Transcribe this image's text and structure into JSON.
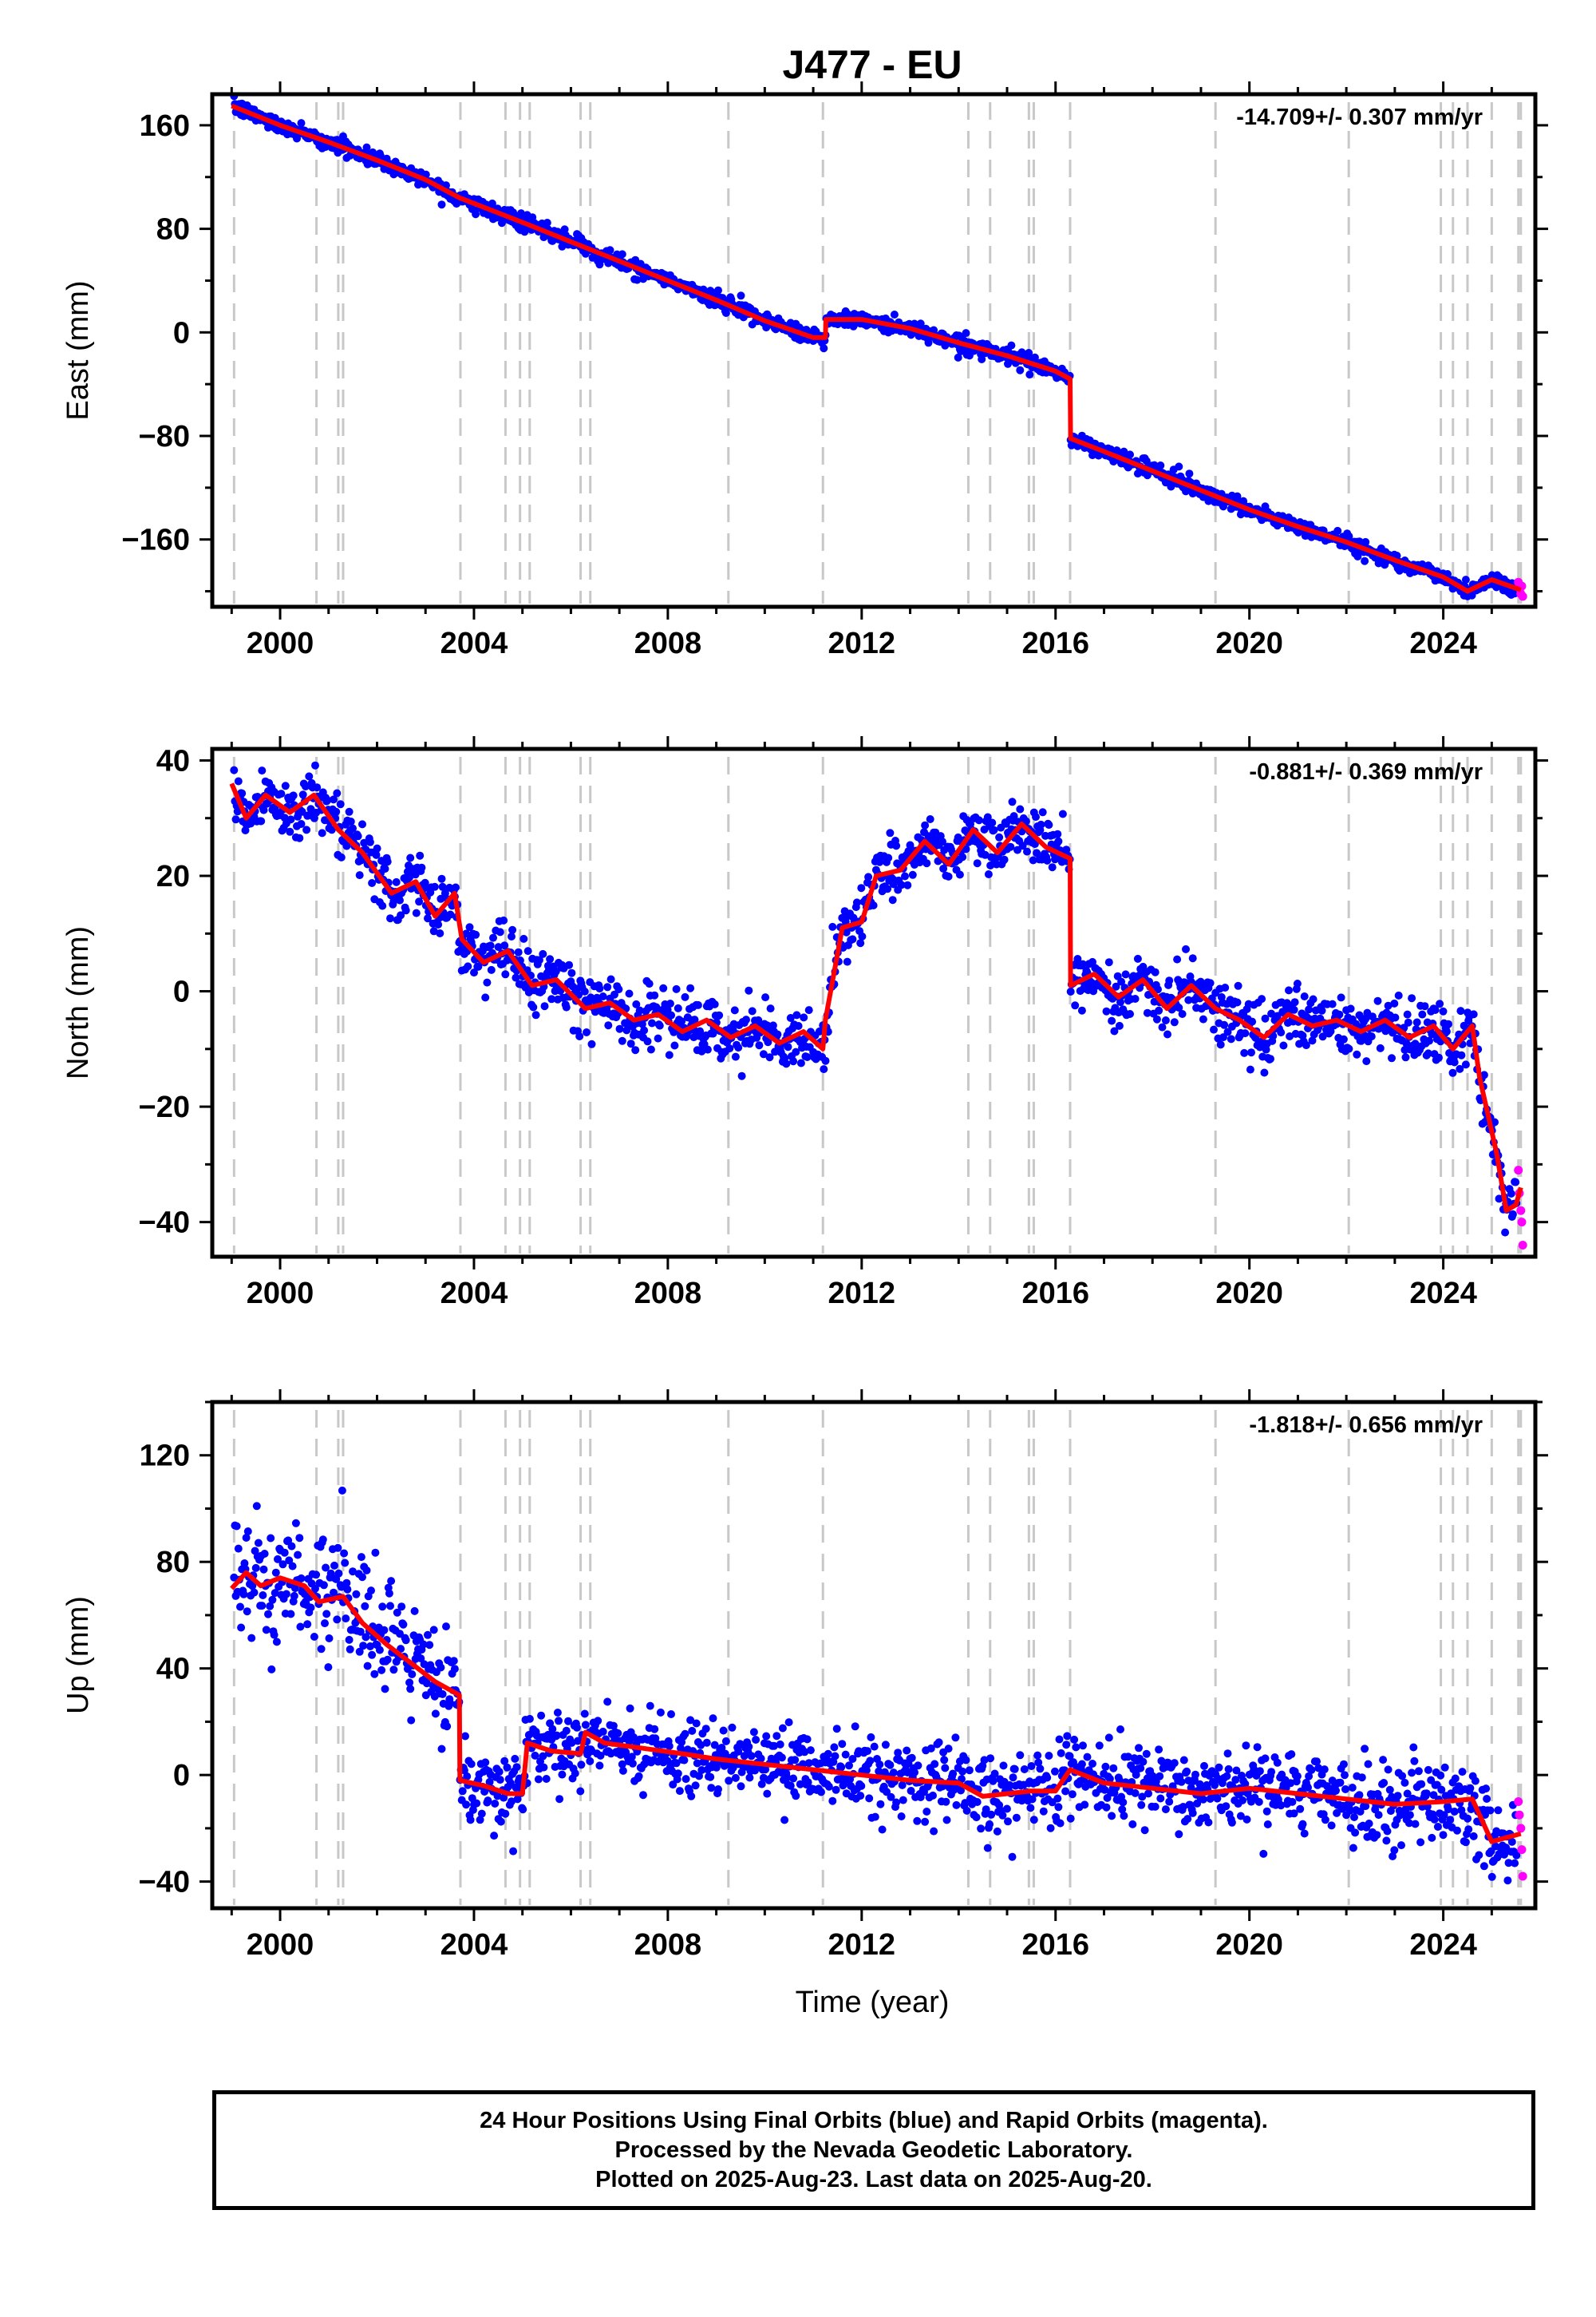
{
  "title": "J477 - EU",
  "xlabel": "Time (year)",
  "footer": {
    "line1": "24 Hour Positions Using Final Orbits (blue) and Rapid Orbits (magenta).",
    "line2": "Processed by the Nevada Geodetic Laboratory.",
    "line3": "Plotted on 2025-Aug-23. Last data on 2025-Aug-20."
  },
  "colors": {
    "final": "#0000ff",
    "rapid": "#ff00ff",
    "model": "#ff0000",
    "steps": "#c8c8c8"
  },
  "chart_data": [
    {
      "type": "scatter",
      "panel": "east",
      "ylabel": "East (mm)",
      "rate": "-14.709+/- 0.307 mm/yr",
      "xlim": [
        1998.6,
        2025.9
      ],
      "ylim": [
        -212,
        184
      ],
      "xticks": [
        2000,
        2004,
        2008,
        2012,
        2016,
        2020,
        2024
      ],
      "yticks": [
        160,
        80,
        0,
        -80,
        -160
      ],
      "ytick_labels": [
        "160",
        "80",
        "0",
        "−80",
        "−160"
      ],
      "model": [
        [
          1999.0,
          175
        ],
        [
          2000.0,
          160
        ],
        [
          2001.0,
          147
        ],
        [
          2002.0,
          133
        ],
        [
          2003.0,
          118
        ],
        [
          2003.7,
          104
        ],
        [
          2005.0,
          85
        ],
        [
          2006.0,
          70
        ],
        [
          2007.0,
          55
        ],
        [
          2008.0,
          40
        ],
        [
          2009.0,
          25
        ],
        [
          2010.0,
          9
        ],
        [
          2011.0,
          -4
        ],
        [
          2011.25,
          -4
        ],
        [
          2011.26,
          10
        ],
        [
          2012.0,
          10
        ],
        [
          2013.0,
          3
        ],
        [
          2014.0,
          -8
        ],
        [
          2015.0,
          -18
        ],
        [
          2016.0,
          -30
        ],
        [
          2016.3,
          -36
        ],
        [
          2016.31,
          -82
        ],
        [
          2017.0,
          -92
        ],
        [
          2018.0,
          -107
        ],
        [
          2019.0,
          -122
        ],
        [
          2020.0,
          -137
        ],
        [
          2021.0,
          -150
        ],
        [
          2022.0,
          -162
        ],
        [
          2023.0,
          -176
        ],
        [
          2024.0,
          -189
        ],
        [
          2024.5,
          -200
        ],
        [
          2025.0,
          -191
        ],
        [
          2025.6,
          -199
        ]
      ],
      "noise": 3,
      "rapid_points": [
        [
          2025.55,
          -193
        ],
        [
          2025.58,
          -198
        ],
        [
          2025.6,
          -202
        ],
        [
          2025.62,
          -196
        ],
        [
          2025.64,
          -204
        ]
      ]
    },
    {
      "type": "scatter",
      "panel": "north",
      "ylabel": "North (mm)",
      "rate": "-0.881+/- 0.369 mm/yr",
      "xlim": [
        1998.6,
        2025.9
      ],
      "ylim": [
        -46,
        42
      ],
      "xticks": [
        2000,
        2004,
        2008,
        2012,
        2016,
        2020,
        2024
      ],
      "yticks": [
        40,
        20,
        0,
        -20,
        -40
      ],
      "ytick_labels": [
        "40",
        "20",
        "0",
        "−20",
        "−40"
      ],
      "model": [
        [
          1999.0,
          36
        ],
        [
          1999.3,
          30
        ],
        [
          1999.7,
          34
        ],
        [
          2000.2,
          31
        ],
        [
          2000.7,
          34
        ],
        [
          2001.2,
          28
        ],
        [
          2001.7,
          24
        ],
        [
          2002.3,
          17
        ],
        [
          2002.8,
          19
        ],
        [
          2003.2,
          13
        ],
        [
          2003.6,
          17
        ],
        [
          2003.75,
          9
        ],
        [
          2004.2,
          5
        ],
        [
          2004.7,
          7
        ],
        [
          2005.2,
          1
        ],
        [
          2005.7,
          2
        ],
        [
          2006.3,
          -3
        ],
        [
          2006.8,
          -2
        ],
        [
          2007.3,
          -5
        ],
        [
          2007.8,
          -4
        ],
        [
          2008.3,
          -7
        ],
        [
          2008.8,
          -5
        ],
        [
          2009.3,
          -8
        ],
        [
          2009.8,
          -6
        ],
        [
          2010.3,
          -9
        ],
        [
          2010.8,
          -7
        ],
        [
          2011.2,
          -10
        ],
        [
          2011.25,
          -5
        ],
        [
          2011.6,
          11
        ],
        [
          2012.0,
          12
        ],
        [
          2012.3,
          20
        ],
        [
          2012.8,
          21
        ],
        [
          2013.3,
          26
        ],
        [
          2013.8,
          22
        ],
        [
          2014.3,
          28
        ],
        [
          2014.8,
          24
        ],
        [
          2015.3,
          29
        ],
        [
          2015.8,
          25
        ],
        [
          2016.3,
          23
        ],
        [
          2016.31,
          1
        ],
        [
          2016.8,
          3
        ],
        [
          2017.3,
          -1
        ],
        [
          2017.8,
          2
        ],
        [
          2018.3,
          -3
        ],
        [
          2018.8,
          1
        ],
        [
          2019.3,
          -3
        ],
        [
          2019.8,
          -5
        ],
        [
          2020.3,
          -8
        ],
        [
          2020.8,
          -4
        ],
        [
          2021.3,
          -6
        ],
        [
          2021.8,
          -5
        ],
        [
          2022.3,
          -7
        ],
        [
          2022.8,
          -5
        ],
        [
          2023.3,
          -8
        ],
        [
          2023.8,
          -6
        ],
        [
          2024.2,
          -10
        ],
        [
          2024.6,
          -6
        ],
        [
          2024.75,
          -15
        ],
        [
          2025.1,
          -28
        ],
        [
          2025.3,
          -38
        ],
        [
          2025.5,
          -37
        ],
        [
          2025.6,
          -34
        ]
      ],
      "noise": 2.5,
      "rapid_points": [
        [
          2025.55,
          -31
        ],
        [
          2025.57,
          -35
        ],
        [
          2025.6,
          -38
        ],
        [
          2025.62,
          -40
        ],
        [
          2025.64,
          -44
        ]
      ]
    },
    {
      "type": "scatter",
      "panel": "up",
      "ylabel": "Up (mm)",
      "rate": "-1.818+/- 0.656 mm/yr",
      "xlim": [
        1998.6,
        2025.9
      ],
      "ylim": [
        -50,
        140
      ],
      "xticks": [
        2000,
        2004,
        2008,
        2012,
        2016,
        2020,
        2024
      ],
      "yticks": [
        120,
        80,
        40,
        0,
        -40
      ],
      "ytick_labels": [
        "120",
        "80",
        "40",
        "0",
        "−40"
      ],
      "model": [
        [
          1999.0,
          70
        ],
        [
          1999.3,
          76
        ],
        [
          1999.6,
          71
        ],
        [
          2000.0,
          74
        ],
        [
          2000.5,
          71
        ],
        [
          2000.8,
          65
        ],
        [
          2001.3,
          67
        ],
        [
          2001.7,
          57
        ],
        [
          2002.2,
          49
        ],
        [
          2002.7,
          42
        ],
        [
          2003.2,
          35
        ],
        [
          2003.7,
          30
        ],
        [
          2003.71,
          -2
        ],
        [
          2004.2,
          -4
        ],
        [
          2004.7,
          -7
        ],
        [
          2005.0,
          -7
        ],
        [
          2005.1,
          12
        ],
        [
          2005.6,
          9
        ],
        [
          2006.2,
          8
        ],
        [
          2006.3,
          16
        ],
        [
          2006.7,
          12
        ],
        [
          2007.5,
          10
        ],
        [
          2008.3,
          8
        ],
        [
          2009.0,
          6
        ],
        [
          2010.0,
          4
        ],
        [
          2011.0,
          2
        ],
        [
          2012.0,
          0
        ],
        [
          2013.0,
          -2
        ],
        [
          2014.0,
          -3
        ],
        [
          2014.5,
          -8
        ],
        [
          2015.5,
          -6
        ],
        [
          2016.0,
          -6
        ],
        [
          2016.3,
          2
        ],
        [
          2017.0,
          -3
        ],
        [
          2018.0,
          -5
        ],
        [
          2019.0,
          -7
        ],
        [
          2020.0,
          -5
        ],
        [
          2021.0,
          -7
        ],
        [
          2022.0,
          -9
        ],
        [
          2023.0,
          -11
        ],
        [
          2024.0,
          -10
        ],
        [
          2024.6,
          -9
        ],
        [
          2025.0,
          -25
        ],
        [
          2025.6,
          -22
        ]
      ],
      "noise": 7,
      "rapid_points": [
        [
          2025.55,
          -10
        ],
        [
          2025.57,
          -15
        ],
        [
          2025.6,
          -20
        ],
        [
          2025.62,
          -28
        ],
        [
          2025.64,
          -38
        ]
      ]
    }
  ],
  "step_lines": [
    1999.05,
    2000.75,
    2001.2,
    2001.3,
    2003.72,
    2004.65,
    2004.95,
    2005.15,
    2006.2,
    2006.4,
    2009.25,
    2011.2,
    2014.2,
    2014.65,
    2015.45,
    2015.55,
    2016.3,
    2019.3,
    2022.05,
    2023.95,
    2024.2,
    2024.5,
    2025.0,
    2025.55,
    2025.6
  ]
}
